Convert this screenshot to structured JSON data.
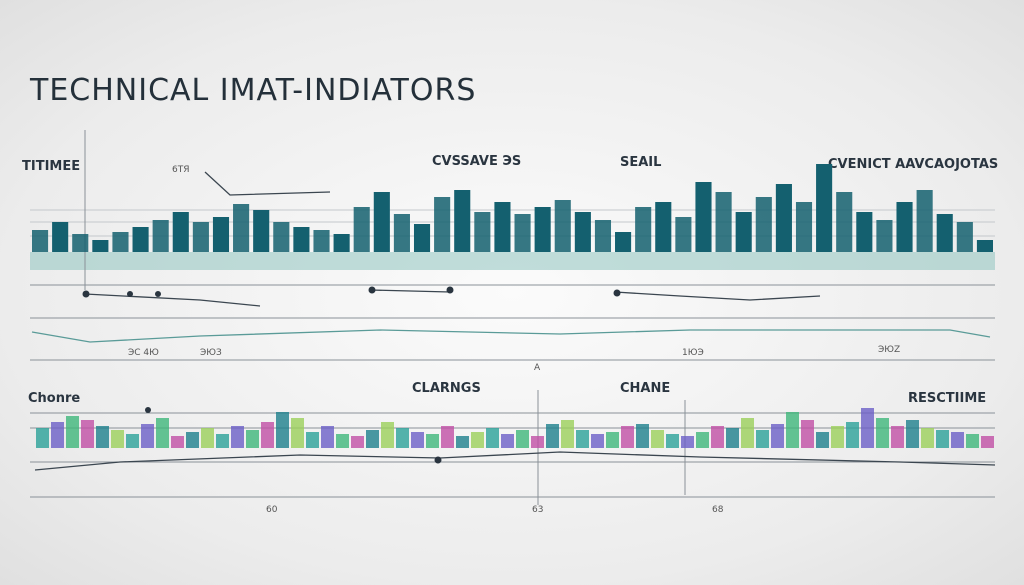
{
  "title": "TECHNICAL IMAT-INDIATORS",
  "top_panel": {
    "labels": [
      "TITIMEE",
      "6TЯ",
      "CVSSAVE ЭS",
      "SEAIL",
      "CVENICT AAVCAOJOTAS"
    ],
    "axis_labels": [
      "ЭC 4Ю",
      "ЭЮЗ",
      "1ЮЭ",
      "ЭЮZ",
      "A"
    ],
    "color": "#14606f",
    "values": [
      22,
      30,
      18,
      12,
      20,
      25,
      32,
      40,
      30,
      35,
      48,
      42,
      30,
      25,
      22,
      18,
      45,
      60,
      38,
      28,
      55,
      62,
      40,
      50,
      38,
      45,
      52,
      40,
      32,
      20,
      45,
      50,
      35,
      70,
      60,
      40,
      55,
      68,
      50,
      88,
      60,
      40,
      32,
      50,
      62,
      38,
      30,
      12
    ]
  },
  "bottom_panel": {
    "labels": [
      "Chonre",
      "CLARNGS",
      "CHANE",
      "RESCTIIME"
    ],
    "axis_labels": [
      "60",
      "63",
      "68"
    ],
    "colors": [
      "#2aa198",
      "#6c5fc7",
      "#3fb67a",
      "#c04fa5",
      "#1d7f8c",
      "#9bcf5a"
    ],
    "values": [
      20,
      26,
      32,
      28,
      22,
      18,
      14,
      24,
      30,
      12,
      16,
      20,
      14,
      22,
      18,
      26,
      36,
      30,
      16,
      22,
      14,
      12,
      18,
      26,
      20,
      16,
      14,
      22,
      12,
      16,
      20,
      14,
      18,
      12,
      24,
      28,
      18,
      14,
      16,
      22,
      24,
      18,
      14,
      12,
      16,
      22,
      20,
      30,
      18,
      24,
      36,
      28,
      16,
      22,
      26,
      40,
      30,
      22,
      28,
      20,
      18,
      16,
      14,
      12
    ]
  }
}
